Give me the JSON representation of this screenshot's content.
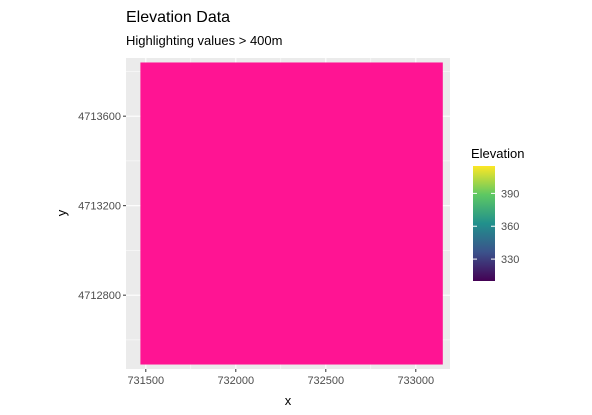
{
  "chart_data": {
    "type": "heatmap",
    "title": "Elevation Data",
    "subtitle": "Highlighting values > 400m",
    "xlabel": "x",
    "ylabel": "y",
    "x_ticks": [
      731500,
      732000,
      732500,
      733000
    ],
    "y_ticks": [
      4712800,
      4713200,
      4713600
    ],
    "xlim": [
      731390,
      733190
    ],
    "ylim": [
      4712470,
      4713860
    ],
    "grid": true,
    "raster_extent": {
      "x": [
        731470,
        733150
      ],
      "y": [
        4712490,
        4713840
      ]
    },
    "highlight": {
      "condition": "> 400",
      "color": "#ff1493"
    },
    "legend": {
      "title": "Elevation",
      "placement": "right",
      "range": [
        310,
        415
      ],
      "ticks": [
        330,
        360,
        390
      ],
      "colors": [
        "#440154",
        "#3b528b",
        "#21908c",
        "#5dc863",
        "#fde725"
      ]
    },
    "panel_background": "#ebebeb",
    "grid_color": "#ffffff"
  }
}
